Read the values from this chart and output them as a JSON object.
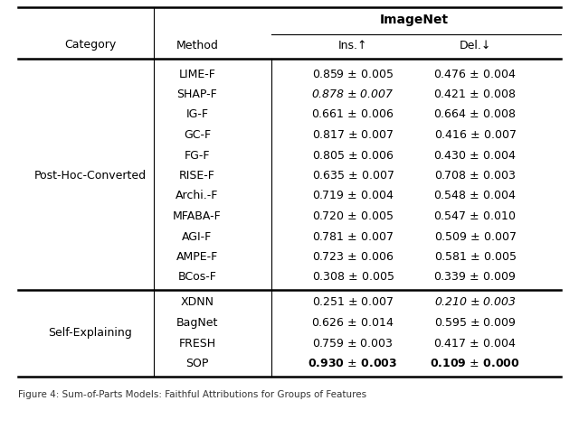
{
  "imagenet_header": "ImageNet",
  "col_cat_label": "Category",
  "col_method_label": "Method",
  "col_ins_label": "Ins.↑",
  "col_del_label": "Del.↓",
  "post_hoc_rows": [
    {
      "method": "LIME-F",
      "ins": "0.859",
      "ins_err": "0.005",
      "del_v": "0.476",
      "del_err": "0.004",
      "ins_italic": false,
      "del_italic": false,
      "ins_bold": false,
      "del_bold": false
    },
    {
      "method": "SHAP-F",
      "ins": "0.878",
      "ins_err": "0.007",
      "del_v": "0.421",
      "del_err": "0.008",
      "ins_italic": true,
      "del_italic": false,
      "ins_bold": false,
      "del_bold": false
    },
    {
      "method": "IG-F",
      "ins": "0.661",
      "ins_err": "0.006",
      "del_v": "0.664",
      "del_err": "0.008",
      "ins_italic": false,
      "del_italic": false,
      "ins_bold": false,
      "del_bold": false
    },
    {
      "method": "GC-F",
      "ins": "0.817",
      "ins_err": "0.007",
      "del_v": "0.416",
      "del_err": "0.007",
      "ins_italic": false,
      "del_italic": false,
      "ins_bold": false,
      "del_bold": false
    },
    {
      "method": "FG-F",
      "ins": "0.805",
      "ins_err": "0.006",
      "del_v": "0.430",
      "del_err": "0.004",
      "ins_italic": false,
      "del_italic": false,
      "ins_bold": false,
      "del_bold": false
    },
    {
      "method": "RISE-F",
      "ins": "0.635",
      "ins_err": "0.007",
      "del_v": "0.708",
      "del_err": "0.003",
      "ins_italic": false,
      "del_italic": false,
      "ins_bold": false,
      "del_bold": false
    },
    {
      "method": "Archi.-F",
      "ins": "0.719",
      "ins_err": "0.004",
      "del_v": "0.548",
      "del_err": "0.004",
      "ins_italic": false,
      "del_italic": false,
      "ins_bold": false,
      "del_bold": false
    },
    {
      "method": "MFABA-F",
      "ins": "0.720",
      "ins_err": "0.005",
      "del_v": "0.547",
      "del_err": "0.010",
      "ins_italic": false,
      "del_italic": false,
      "ins_bold": false,
      "del_bold": false
    },
    {
      "method": "AGI-F",
      "ins": "0.781",
      "ins_err": "0.007",
      "del_v": "0.509",
      "del_err": "0.007",
      "ins_italic": false,
      "del_italic": false,
      "ins_bold": false,
      "del_bold": false
    },
    {
      "method": "AMPE-F",
      "ins": "0.723",
      "ins_err": "0.006",
      "del_v": "0.581",
      "del_err": "0.005",
      "ins_italic": false,
      "del_italic": false,
      "ins_bold": false,
      "del_bold": false
    },
    {
      "method": "BCos-F",
      "ins": "0.308",
      "ins_err": "0.005",
      "del_v": "0.339",
      "del_err": "0.009",
      "ins_italic": false,
      "del_italic": false,
      "ins_bold": false,
      "del_bold": false
    }
  ],
  "self_explaining_rows": [
    {
      "method": "XDNN",
      "ins": "0.251",
      "ins_err": "0.007",
      "del_v": "0.210",
      "del_err": "0.003",
      "ins_italic": false,
      "del_italic": true,
      "ins_bold": false,
      "del_bold": false
    },
    {
      "method": "BagNet",
      "ins": "0.626",
      "ins_err": "0.014",
      "del_v": "0.595",
      "del_err": "0.009",
      "ins_italic": false,
      "del_italic": false,
      "ins_bold": false,
      "del_bold": false
    },
    {
      "method": "FRESH",
      "ins": "0.759",
      "ins_err": "0.003",
      "del_v": "0.417",
      "del_err": "0.004",
      "ins_italic": false,
      "del_italic": false,
      "ins_bold": false,
      "del_bold": false
    },
    {
      "method": "SOP",
      "ins": "0.930",
      "ins_err": "0.003",
      "del_v": "0.109",
      "del_err": "0.000",
      "ins_italic": false,
      "del_italic": false,
      "ins_bold": true,
      "del_bold": true
    }
  ],
  "category_post_hoc": "Post-Hoc-Converted",
  "category_self_explaining": "Self-Explaining",
  "bg_color": "#ffffff",
  "text_color": "#000000",
  "fontsize": 9.0,
  "caption": "Figure 4: Sum-of-Parts Models: Faithful Attributions for Groups of Features"
}
